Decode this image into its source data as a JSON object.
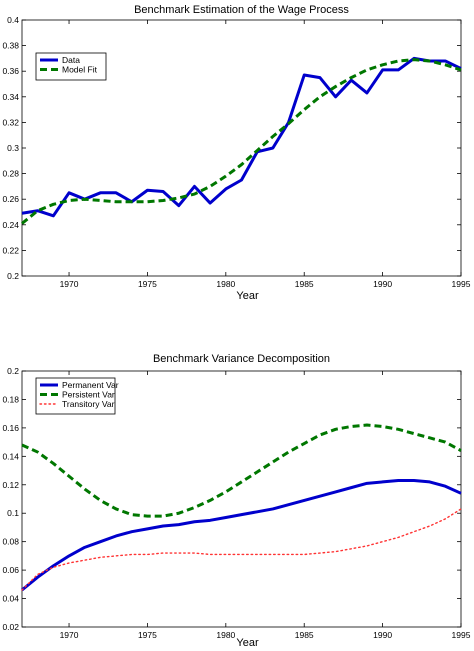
{
  "chart_data": [
    {
      "type": "line",
      "title": "Benchmark Estimation of the Wage Process",
      "xlabel": "Year",
      "ylabel": "",
      "xlim": [
        1967,
        1995
      ],
      "ylim": [
        0.2,
        0.4
      ],
      "xticks": [
        1970,
        1975,
        1980,
        1985,
        1990,
        1995
      ],
      "xtick_labels": [
        "1970",
        "1975",
        "1980",
        "1985",
        "1990",
        "1995"
      ],
      "yticks": [
        0.2,
        0.22,
        0.24,
        0.26,
        0.28,
        0.3,
        0.32,
        0.34,
        0.36,
        0.38,
        0.4
      ],
      "ytick_labels": [
        "0.2",
        "0.22",
        "0.24",
        "0.26",
        "0.28",
        "0.3",
        "0.32",
        "0.34",
        "0.36",
        "0.38",
        "0.4"
      ],
      "grid": false,
      "legend_position": "top-left",
      "series": [
        {
          "name": "Data",
          "color": "#0000cc",
          "style": "solid",
          "x": [
            1967,
            1968,
            1969,
            1970,
            1971,
            1972,
            1973,
            1974,
            1975,
            1976,
            1977,
            1978,
            1979,
            1980,
            1981,
            1982,
            1983,
            1984,
            1985,
            1986,
            1987,
            1988,
            1989,
            1990,
            1991,
            1992,
            1993,
            1994,
            1995
          ],
          "y": [
            0.249,
            0.251,
            0.247,
            0.265,
            0.26,
            0.265,
            0.265,
            0.258,
            0.267,
            0.266,
            0.255,
            0.27,
            0.257,
            0.268,
            0.275,
            0.297,
            0.3,
            0.32,
            0.357,
            0.355,
            0.34,
            0.353,
            0.343,
            0.361,
            0.361,
            0.37,
            0.368,
            0.368,
            0.362
          ]
        },
        {
          "name": "Model Fit",
          "color": "#007700",
          "style": "dashed",
          "x": [
            1967,
            1968,
            1969,
            1970,
            1971,
            1972,
            1973,
            1974,
            1975,
            1976,
            1977,
            1978,
            1979,
            1980,
            1981,
            1982,
            1983,
            1984,
            1985,
            1986,
            1987,
            1988,
            1989,
            1990,
            1991,
            1992,
            1993,
            1994,
            1995
          ],
          "y": [
            0.241,
            0.251,
            0.256,
            0.259,
            0.26,
            0.259,
            0.258,
            0.258,
            0.258,
            0.259,
            0.261,
            0.264,
            0.27,
            0.278,
            0.287,
            0.298,
            0.309,
            0.319,
            0.33,
            0.34,
            0.348,
            0.355,
            0.361,
            0.365,
            0.368,
            0.369,
            0.368,
            0.365,
            0.361
          ]
        }
      ]
    },
    {
      "type": "line",
      "title": "Benchmark Variance Decomposition",
      "xlabel": "Year",
      "ylabel": "",
      "xlim": [
        1967,
        1995
      ],
      "ylim": [
        0.02,
        0.2
      ],
      "xticks": [
        1970,
        1975,
        1980,
        1985,
        1990,
        1995
      ],
      "xtick_labels": [
        "1970",
        "1975",
        "1980",
        "1985",
        "1990",
        "1995"
      ],
      "yticks": [
        0.02,
        0.04,
        0.06,
        0.08,
        0.1,
        0.12,
        0.14,
        0.16,
        0.18,
        0.2
      ],
      "ytick_labels": [
        "0.02",
        "0.04",
        "0.06",
        "0.08",
        "0.1",
        "0.12",
        "0.14",
        "0.16",
        "0.18",
        "0.2"
      ],
      "grid": false,
      "legend_position": "top-left",
      "series": [
        {
          "name": "Permanent Var",
          "color": "#0000cc",
          "style": "solid",
          "x": [
            1967,
            1968,
            1969,
            1970,
            1971,
            1972,
            1973,
            1974,
            1975,
            1976,
            1977,
            1978,
            1979,
            1980,
            1981,
            1982,
            1983,
            1984,
            1985,
            1986,
            1987,
            1988,
            1989,
            1990,
            1991,
            1992,
            1993,
            1994,
            1995
          ],
          "y": [
            0.046,
            0.055,
            0.063,
            0.07,
            0.076,
            0.08,
            0.084,
            0.087,
            0.089,
            0.091,
            0.092,
            0.094,
            0.095,
            0.097,
            0.099,
            0.101,
            0.103,
            0.106,
            0.109,
            0.112,
            0.115,
            0.118,
            0.121,
            0.122,
            0.123,
            0.123,
            0.122,
            0.119,
            0.114
          ]
        },
        {
          "name": "Persistent Var",
          "color": "#007700",
          "style": "dashed",
          "x": [
            1967,
            1968,
            1969,
            1970,
            1971,
            1972,
            1973,
            1974,
            1975,
            1976,
            1977,
            1978,
            1979,
            1980,
            1981,
            1982,
            1983,
            1984,
            1985,
            1986,
            1987,
            1988,
            1989,
            1990,
            1991,
            1992,
            1993,
            1994,
            1995
          ],
          "y": [
            0.148,
            0.143,
            0.135,
            0.126,
            0.117,
            0.109,
            0.103,
            0.099,
            0.098,
            0.098,
            0.1,
            0.104,
            0.109,
            0.115,
            0.122,
            0.129,
            0.136,
            0.143,
            0.149,
            0.155,
            0.159,
            0.161,
            0.162,
            0.161,
            0.159,
            0.156,
            0.153,
            0.15,
            0.144
          ]
        },
        {
          "name": "Transitory Var",
          "color": "#ff3333",
          "style": "dotted",
          "x": [
            1967,
            1968,
            1969,
            1970,
            1971,
            1972,
            1973,
            1974,
            1975,
            1976,
            1977,
            1978,
            1979,
            1980,
            1981,
            1982,
            1983,
            1984,
            1985,
            1986,
            1987,
            1988,
            1989,
            1990,
            1991,
            1992,
            1993,
            1994,
            1995
          ],
          "y": [
            0.046,
            0.057,
            0.062,
            0.065,
            0.067,
            0.069,
            0.07,
            0.071,
            0.071,
            0.072,
            0.072,
            0.072,
            0.071,
            0.071,
            0.071,
            0.071,
            0.071,
            0.071,
            0.071,
            0.072,
            0.073,
            0.075,
            0.077,
            0.08,
            0.083,
            0.087,
            0.091,
            0.096,
            0.103
          ]
        }
      ]
    }
  ]
}
